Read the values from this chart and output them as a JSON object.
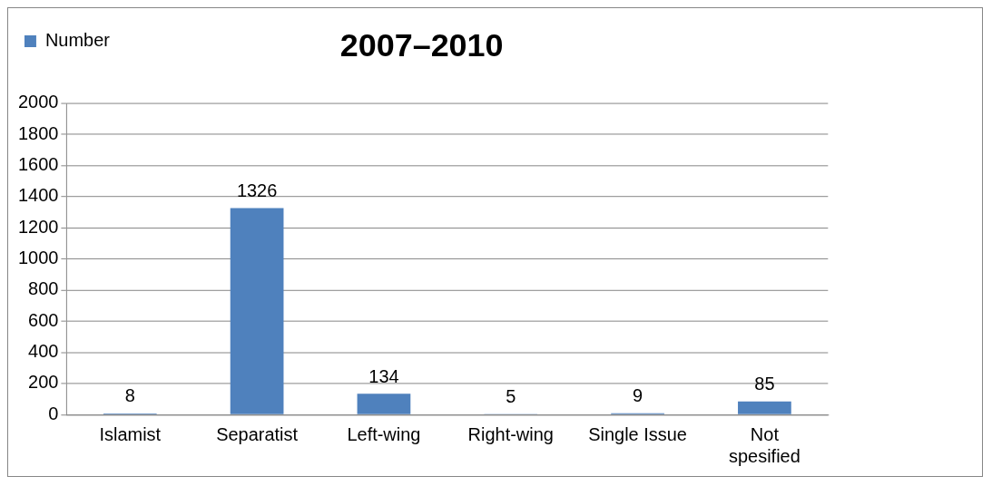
{
  "chart_data": {
    "type": "bar",
    "title": "2007–2010",
    "categories": [
      "Islamist",
      "Separatist",
      "Left-wing",
      "Right-wing",
      "Single Issue",
      "Not spesified"
    ],
    "series": [
      {
        "name": "Number",
        "color": "#4f81bd",
        "values": [
          8,
          1326,
          134,
          5,
          9,
          85
        ]
      }
    ],
    "ylim": [
      0,
      2000
    ],
    "yticks": [
      0,
      200,
      400,
      600,
      800,
      1000,
      1200,
      1400,
      1600,
      1800,
      2000
    ],
    "grid": "y",
    "legend": "top left",
    "data_labels": true
  }
}
